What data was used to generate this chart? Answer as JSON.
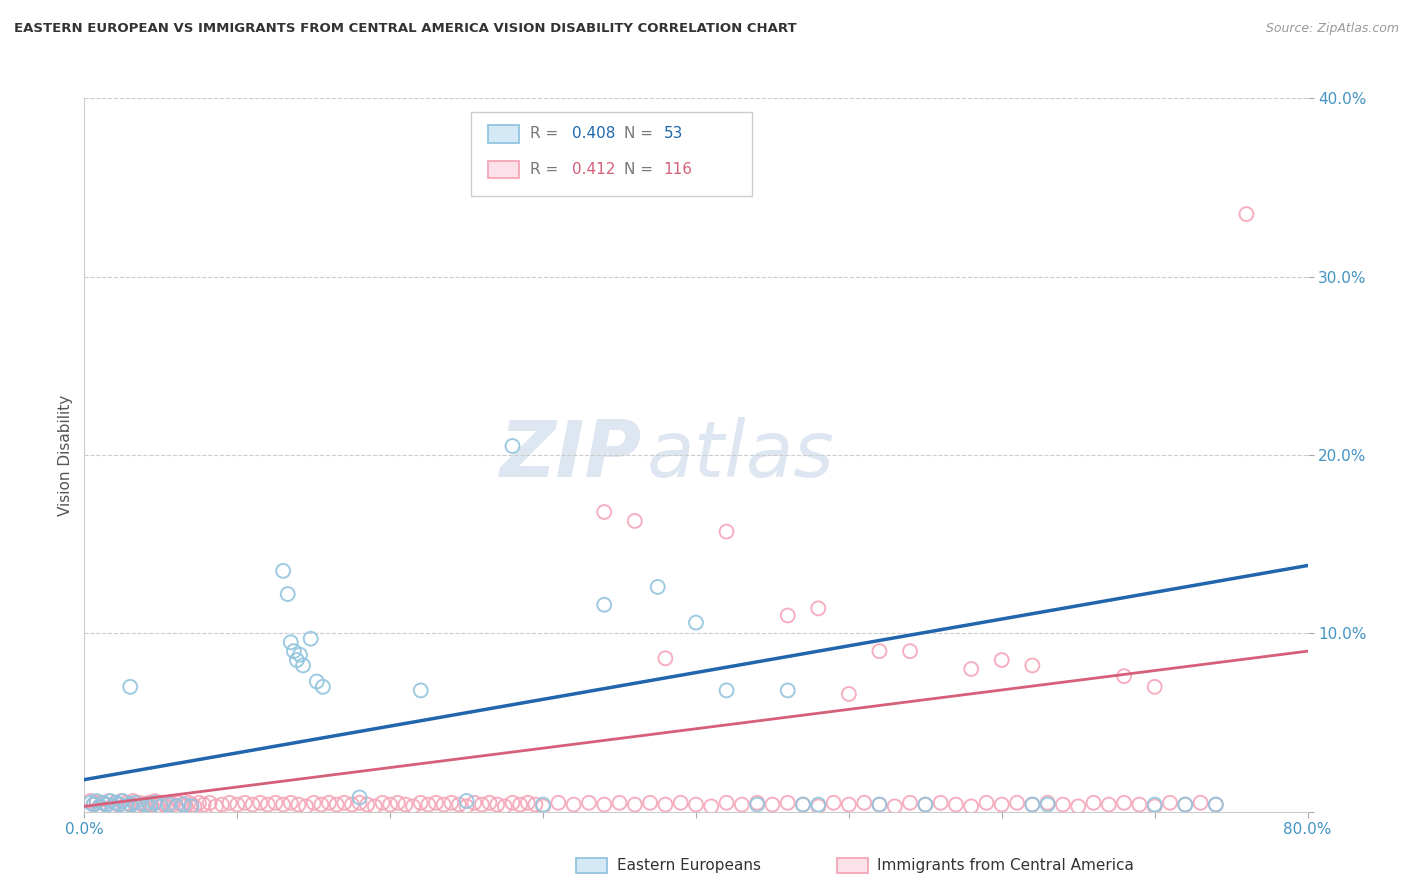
{
  "title": "EASTERN EUROPEAN VS IMMIGRANTS FROM CENTRAL AMERICA VISION DISABILITY CORRELATION CHART",
  "source": "Source: ZipAtlas.com",
  "ylabel": "Vision Disability",
  "watermark_zip": "ZIP",
  "watermark_atlas": "atlas",
  "legend_label1": "Eastern Europeans",
  "legend_label2": "Immigrants from Central America",
  "R1": "0.408",
  "N1": "53",
  "R2": "0.412",
  "N2": "116",
  "color1": "#92c5de",
  "color2": "#f4a7b9",
  "line_color1": "#2166ac",
  "line_color2": "#d6607a",
  "tick_color": "#4393c3",
  "xlim": [
    0,
    0.8
  ],
  "ylim": [
    0,
    0.4
  ],
  "blue_line_x": [
    0.0,
    0.8
  ],
  "blue_line_y": [
    0.018,
    0.138
  ],
  "pink_line_x": [
    0.0,
    0.8
  ],
  "pink_line_y": [
    0.003,
    0.09
  ],
  "blue_points": [
    [
      0.004,
      0.005
    ],
    [
      0.006,
      0.004
    ],
    [
      0.008,
      0.006
    ],
    [
      0.01,
      0.003
    ],
    [
      0.012,
      0.005
    ],
    [
      0.015,
      0.004
    ],
    [
      0.017,
      0.006
    ],
    [
      0.019,
      0.003
    ],
    [
      0.021,
      0.005
    ],
    [
      0.023,
      0.004
    ],
    [
      0.025,
      0.006
    ],
    [
      0.027,
      0.003
    ],
    [
      0.03,
      0.004
    ],
    [
      0.033,
      0.005
    ],
    [
      0.036,
      0.003
    ],
    [
      0.04,
      0.004
    ],
    [
      0.043,
      0.003
    ],
    [
      0.046,
      0.005
    ],
    [
      0.05,
      0.003
    ],
    [
      0.055,
      0.004
    ],
    [
      0.06,
      0.003
    ],
    [
      0.065,
      0.004
    ],
    [
      0.07,
      0.003
    ],
    [
      0.03,
      0.07
    ],
    [
      0.13,
      0.135
    ],
    [
      0.133,
      0.122
    ],
    [
      0.135,
      0.095
    ],
    [
      0.137,
      0.09
    ],
    [
      0.139,
      0.085
    ],
    [
      0.141,
      0.088
    ],
    [
      0.143,
      0.082
    ],
    [
      0.148,
      0.097
    ],
    [
      0.152,
      0.073
    ],
    [
      0.156,
      0.07
    ],
    [
      0.18,
      0.008
    ],
    [
      0.22,
      0.068
    ],
    [
      0.25,
      0.006
    ],
    [
      0.28,
      0.205
    ],
    [
      0.3,
      0.004
    ],
    [
      0.34,
      0.116
    ],
    [
      0.375,
      0.126
    ],
    [
      0.4,
      0.106
    ],
    [
      0.42,
      0.068
    ],
    [
      0.44,
      0.004
    ],
    [
      0.46,
      0.068
    ],
    [
      0.47,
      0.004
    ],
    [
      0.48,
      0.004
    ],
    [
      0.52,
      0.004
    ],
    [
      0.55,
      0.004
    ],
    [
      0.62,
      0.004
    ],
    [
      0.63,
      0.004
    ],
    [
      0.7,
      0.004
    ],
    [
      0.72,
      0.004
    ],
    [
      0.74,
      0.004
    ]
  ],
  "pink_points": [
    [
      0.004,
      0.006
    ],
    [
      0.006,
      0.004
    ],
    [
      0.008,
      0.005
    ],
    [
      0.01,
      0.003
    ],
    [
      0.012,
      0.005
    ],
    [
      0.014,
      0.004
    ],
    [
      0.016,
      0.006
    ],
    [
      0.018,
      0.003
    ],
    [
      0.02,
      0.005
    ],
    [
      0.022,
      0.004
    ],
    [
      0.024,
      0.006
    ],
    [
      0.026,
      0.003
    ],
    [
      0.028,
      0.005
    ],
    [
      0.03,
      0.004
    ],
    [
      0.032,
      0.006
    ],
    [
      0.034,
      0.003
    ],
    [
      0.036,
      0.005
    ],
    [
      0.038,
      0.004
    ],
    [
      0.04,
      0.003
    ],
    [
      0.042,
      0.005
    ],
    [
      0.044,
      0.004
    ],
    [
      0.046,
      0.006
    ],
    [
      0.048,
      0.003
    ],
    [
      0.05,
      0.005
    ],
    [
      0.052,
      0.004
    ],
    [
      0.054,
      0.003
    ],
    [
      0.056,
      0.005
    ],
    [
      0.058,
      0.004
    ],
    [
      0.06,
      0.003
    ],
    [
      0.062,
      0.005
    ],
    [
      0.064,
      0.004
    ],
    [
      0.066,
      0.003
    ],
    [
      0.068,
      0.005
    ],
    [
      0.07,
      0.004
    ],
    [
      0.072,
      0.003
    ],
    [
      0.075,
      0.005
    ],
    [
      0.078,
      0.004
    ],
    [
      0.082,
      0.005
    ],
    [
      0.086,
      0.003
    ],
    [
      0.09,
      0.004
    ],
    [
      0.095,
      0.005
    ],
    [
      0.1,
      0.004
    ],
    [
      0.105,
      0.005
    ],
    [
      0.11,
      0.004
    ],
    [
      0.115,
      0.005
    ],
    [
      0.12,
      0.004
    ],
    [
      0.125,
      0.005
    ],
    [
      0.13,
      0.004
    ],
    [
      0.135,
      0.005
    ],
    [
      0.14,
      0.004
    ],
    [
      0.145,
      0.003
    ],
    [
      0.15,
      0.005
    ],
    [
      0.155,
      0.004
    ],
    [
      0.16,
      0.005
    ],
    [
      0.165,
      0.004
    ],
    [
      0.17,
      0.005
    ],
    [
      0.175,
      0.004
    ],
    [
      0.18,
      0.005
    ],
    [
      0.185,
      0.004
    ],
    [
      0.19,
      0.003
    ],
    [
      0.195,
      0.005
    ],
    [
      0.2,
      0.004
    ],
    [
      0.205,
      0.005
    ],
    [
      0.21,
      0.004
    ],
    [
      0.215,
      0.003
    ],
    [
      0.22,
      0.005
    ],
    [
      0.225,
      0.004
    ],
    [
      0.23,
      0.005
    ],
    [
      0.235,
      0.004
    ],
    [
      0.24,
      0.005
    ],
    [
      0.245,
      0.004
    ],
    [
      0.25,
      0.003
    ],
    [
      0.255,
      0.005
    ],
    [
      0.26,
      0.004
    ],
    [
      0.265,
      0.005
    ],
    [
      0.27,
      0.004
    ],
    [
      0.275,
      0.003
    ],
    [
      0.28,
      0.005
    ],
    [
      0.285,
      0.004
    ],
    [
      0.29,
      0.005
    ],
    [
      0.295,
      0.004
    ],
    [
      0.3,
      0.003
    ],
    [
      0.31,
      0.005
    ],
    [
      0.32,
      0.004
    ],
    [
      0.33,
      0.005
    ],
    [
      0.34,
      0.004
    ],
    [
      0.35,
      0.005
    ],
    [
      0.36,
      0.004
    ],
    [
      0.37,
      0.005
    ],
    [
      0.38,
      0.004
    ],
    [
      0.39,
      0.005
    ],
    [
      0.4,
      0.004
    ],
    [
      0.41,
      0.003
    ],
    [
      0.42,
      0.005
    ],
    [
      0.43,
      0.004
    ],
    [
      0.44,
      0.005
    ],
    [
      0.45,
      0.004
    ],
    [
      0.46,
      0.005
    ],
    [
      0.47,
      0.004
    ],
    [
      0.48,
      0.003
    ],
    [
      0.49,
      0.005
    ],
    [
      0.5,
      0.004
    ],
    [
      0.51,
      0.005
    ],
    [
      0.52,
      0.004
    ],
    [
      0.53,
      0.003
    ],
    [
      0.54,
      0.005
    ],
    [
      0.55,
      0.004
    ],
    [
      0.56,
      0.005
    ],
    [
      0.57,
      0.004
    ],
    [
      0.58,
      0.003
    ],
    [
      0.59,
      0.005
    ],
    [
      0.6,
      0.004
    ],
    [
      0.61,
      0.005
    ],
    [
      0.62,
      0.004
    ],
    [
      0.63,
      0.005
    ],
    [
      0.64,
      0.004
    ],
    [
      0.65,
      0.003
    ],
    [
      0.66,
      0.005
    ],
    [
      0.67,
      0.004
    ],
    [
      0.68,
      0.005
    ],
    [
      0.69,
      0.004
    ],
    [
      0.7,
      0.003
    ],
    [
      0.71,
      0.005
    ],
    [
      0.72,
      0.004
    ],
    [
      0.73,
      0.005
    ],
    [
      0.74,
      0.004
    ],
    [
      0.34,
      0.168
    ],
    [
      0.36,
      0.163
    ],
    [
      0.38,
      0.086
    ],
    [
      0.42,
      0.157
    ],
    [
      0.46,
      0.11
    ],
    [
      0.48,
      0.114
    ],
    [
      0.5,
      0.066
    ],
    [
      0.52,
      0.09
    ],
    [
      0.54,
      0.09
    ],
    [
      0.58,
      0.08
    ],
    [
      0.6,
      0.085
    ],
    [
      0.62,
      0.082
    ],
    [
      0.68,
      0.076
    ],
    [
      0.7,
      0.07
    ],
    [
      0.76,
      0.335
    ]
  ]
}
